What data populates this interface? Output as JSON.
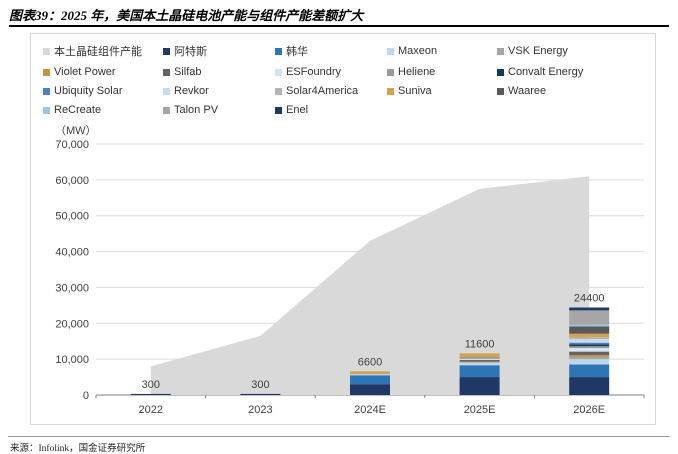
{
  "header": {
    "title": "图表39：2025 年，美国本土晶硅电池产能与组件产能差额扩大"
  },
  "footer": {
    "source": "来源：Infolink，国金证券研究所"
  },
  "chart_data": {
    "type": "combo-area-stacked-bar",
    "title": "美国本土晶硅电池产能与组件产能",
    "unit_label": "（MW）",
    "categories": [
      "2022",
      "2023",
      "2024E",
      "2025E",
      "2026E"
    ],
    "ylim": [
      0,
      70000
    ],
    "ytick_step": 10000,
    "ytick_labels": [
      "0",
      "10,000",
      "20,000",
      "30,000",
      "40,000",
      "50,000",
      "60,000",
      "70,000"
    ],
    "grid": true,
    "legend_position": "top",
    "area_series": {
      "name": "本土晶硅组件产能",
      "color": "#d9d9d9",
      "values": [
        8000,
        16500,
        43000,
        57500,
        61000
      ]
    },
    "bar_total_labels": [
      "300",
      "300",
      "6600",
      "11600",
      "24400"
    ],
    "bar_series": [
      {
        "name": "阿特斯",
        "color": "#1f3864",
        "values": [
          300,
          300,
          3000,
          5000,
          5000
        ]
      },
      {
        "name": "韩华",
        "color": "#2e75b6",
        "values": [
          0,
          0,
          2500,
          3300,
          3500
        ]
      },
      {
        "name": "Maxeon",
        "color": "#bdd7ee",
        "values": [
          0,
          0,
          400,
          800,
          1500
        ]
      },
      {
        "name": "VSK Energy",
        "color": "#a6a6a6",
        "values": [
          0,
          0,
          0,
          0,
          600
        ]
      },
      {
        "name": "Violet Power",
        "color": "#c9933c",
        "values": [
          0,
          0,
          200,
          200,
          500
        ]
      },
      {
        "name": "Silfab",
        "color": "#636363",
        "values": [
          0,
          0,
          0,
          500,
          1000
        ]
      },
      {
        "name": "ESFoundry",
        "color": "#d6e4f0",
        "values": [
          0,
          0,
          0,
          300,
          1000
        ]
      },
      {
        "name": "Heliene",
        "color": "#9a9a9a",
        "values": [
          0,
          0,
          0,
          500,
          500
        ]
      },
      {
        "name": "Convalt Energy",
        "color": "#17375e",
        "values": [
          0,
          0,
          0,
          0,
          500
        ]
      },
      {
        "name": "Ubiquity Solar",
        "color": "#4e81bd",
        "values": [
          0,
          0,
          0,
          0,
          500
        ]
      },
      {
        "name": "Revkor",
        "color": "#c5dbee",
        "values": [
          0,
          0,
          0,
          0,
          1000
        ]
      },
      {
        "name": "Solar4America",
        "color": "#b3b3b3",
        "values": [
          0,
          0,
          0,
          0,
          500
        ]
      },
      {
        "name": "Suniva",
        "color": "#d2a24c",
        "values": [
          0,
          0,
          500,
          1000,
          1000
        ]
      },
      {
        "name": "Waaree",
        "color": "#595959",
        "values": [
          0,
          0,
          0,
          0,
          2000
        ]
      },
      {
        "name": "ReCreate",
        "color": "#9cc3e5",
        "values": [
          0,
          0,
          0,
          0,
          500
        ]
      },
      {
        "name": "Talon PV",
        "color": "#a6a6a6",
        "values": [
          0,
          0,
          0,
          0,
          4000
        ]
      },
      {
        "name": "Enel",
        "color": "#203864",
        "values": [
          0,
          0,
          0,
          0,
          800
        ]
      }
    ],
    "legend_order": [
      "本土晶硅组件产能",
      "阿特斯",
      "韩华",
      "Maxeon",
      "VSK Energy",
      "Violet Power",
      "Silfab",
      "ESFoundry",
      "Heliene",
      "Convalt Energy",
      "Ubiquity Solar",
      "Revkor",
      "Solar4America",
      "Suniva",
      "Waaree",
      "ReCreate",
      "Talon PV",
      "Enel"
    ]
  }
}
